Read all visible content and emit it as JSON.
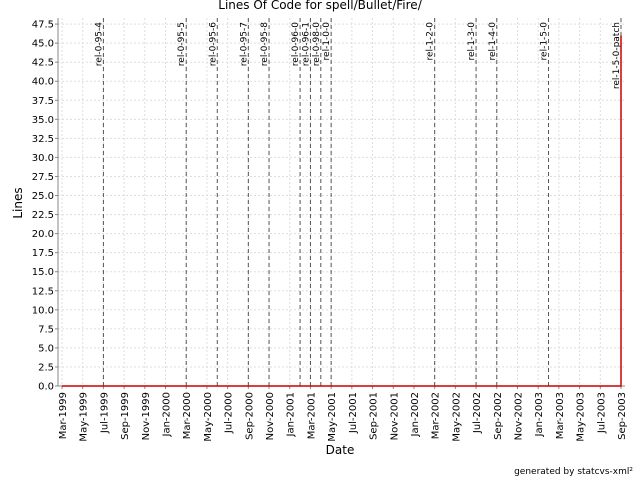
{
  "chart_data": {
    "type": "line",
    "title": "Lines Of Code for spell/Bullet/Fire/",
    "x_label": "Date",
    "y_label": "Lines",
    "footer": "generated by statcvs-xml²",
    "x": [
      "1999-03",
      "2003-09",
      "2003-09"
    ],
    "series": [
      {
        "name": "Lines",
        "color": "#cc0000",
        "values": [
          0,
          0,
          46
        ]
      }
    ],
    "xlim": [
      "1999-03",
      "2003-09"
    ],
    "xticks": [
      {
        "value": "1999-03",
        "label": "Mar-1999"
      },
      {
        "value": "1999-05",
        "label": "May-1999"
      },
      {
        "value": "1999-07",
        "label": "Jul-1999"
      },
      {
        "value": "1999-09",
        "label": "Sep-1999"
      },
      {
        "value": "1999-11",
        "label": "Nov-1999"
      },
      {
        "value": "2000-01",
        "label": "Jan-2000"
      },
      {
        "value": "2000-03",
        "label": "Mar-2000"
      },
      {
        "value": "2000-05",
        "label": "May-2000"
      },
      {
        "value": "2000-07",
        "label": "Jul-2000"
      },
      {
        "value": "2000-09",
        "label": "Sep-2000"
      },
      {
        "value": "2000-11",
        "label": "Nov-2000"
      },
      {
        "value": "2001-01",
        "label": "Jan-2001"
      },
      {
        "value": "2001-03",
        "label": "Mar-2001"
      },
      {
        "value": "2001-05",
        "label": "May-2001"
      },
      {
        "value": "2001-07",
        "label": "Jul-2001"
      },
      {
        "value": "2001-09",
        "label": "Sep-2001"
      },
      {
        "value": "2001-11",
        "label": "Nov-2001"
      },
      {
        "value": "2002-01",
        "label": "Jan-2002"
      },
      {
        "value": "2002-03",
        "label": "Mar-2002"
      },
      {
        "value": "2002-05",
        "label": "May-2002"
      },
      {
        "value": "2002-07",
        "label": "Jul-2002"
      },
      {
        "value": "2002-09",
        "label": "Sep-2002"
      },
      {
        "value": "2002-11",
        "label": "Nov-2002"
      },
      {
        "value": "2003-01",
        "label": "Jan-2003"
      },
      {
        "value": "2003-03",
        "label": "Mar-2003"
      },
      {
        "value": "2003-05",
        "label": "May-2003"
      },
      {
        "value": "2003-07",
        "label": "Jul-2003"
      },
      {
        "value": "2003-09",
        "label": "Sep-2003"
      }
    ],
    "ylim": [
      0,
      48.3
    ],
    "yticks": [
      {
        "value": 0,
        "label": "0.0"
      },
      2.5,
      {
        "value": 5,
        "label": "5.0"
      },
      7.5,
      {
        "value": 10,
        "label": "10.0"
      },
      12.5,
      {
        "value": 15,
        "label": "15.0"
      },
      17.5,
      {
        "value": 20,
        "label": "20.0"
      },
      22.5,
      {
        "value": 25,
        "label": "25.0"
      },
      27.5,
      {
        "value": 30,
        "label": "30.0"
      },
      32.5,
      {
        "value": 35,
        "label": "35.0"
      },
      37.5,
      {
        "value": 40,
        "label": "40.0"
      },
      42.5,
      {
        "value": 45,
        "label": "45.0"
      },
      47.5
    ],
    "grid": true,
    "annotations": [
      {
        "x": "1999-07",
        "text": "rel-0-95-4"
      },
      {
        "x": "2000-03",
        "text": "rel-0-95-5"
      },
      {
        "x": "2000-06",
        "text": "rel-0-95-6"
      },
      {
        "x": "2000-09",
        "text": "rel-0-95-7"
      },
      {
        "x": "2000-11",
        "text": "rel-0-95-8"
      },
      {
        "x": "2001-02",
        "text": "rel-0-96-0"
      },
      {
        "x": "2001-03",
        "text": "rel-0-96-1"
      },
      {
        "x": "2001-04",
        "text": "rel-0-98-0"
      },
      {
        "x": "2001-05",
        "text": "rel-1-0-0"
      },
      {
        "x": "2002-03",
        "text": "rel-1-2-0"
      },
      {
        "x": "2002-07",
        "text": "rel-1-3-0"
      },
      {
        "x": "2002-09",
        "text": "rel-1-4-0"
      },
      {
        "x": "2003-02",
        "text": "rel-1-5-0"
      },
      {
        "x": "2003-09",
        "text": "rel-1-5-0-patch"
      }
    ]
  }
}
